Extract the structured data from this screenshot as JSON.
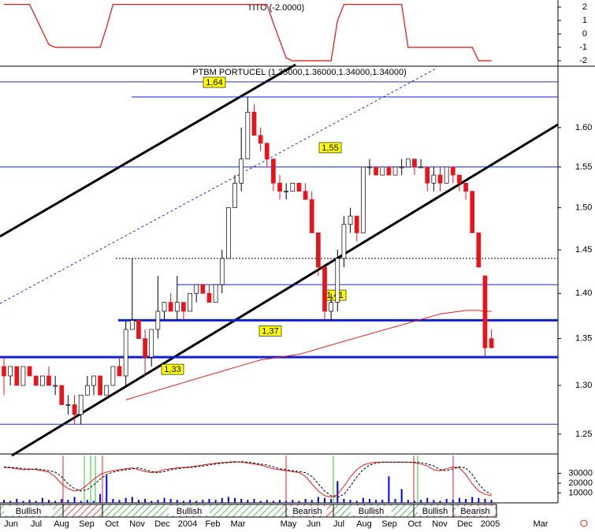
{
  "chart_data": [
    {
      "type": "line",
      "title": "TITO (-2.0000)",
      "color": "#e02020",
      "ylim": [
        -2.35,
        2.53
      ],
      "yticks": [
        2,
        1,
        0,
        -1,
        -2
      ],
      "values": [
        2.2,
        2.2,
        2.2,
        2.2,
        2.2,
        1.2,
        0.2,
        -0.8,
        -1,
        -1,
        -1,
        -1,
        -1,
        -1,
        -1,
        -1,
        0.5,
        2.2,
        2.2,
        2.2,
        2.2,
        2.2,
        2.2,
        2.2,
        2.2,
        2.2,
        2.2,
        2.2,
        2.2,
        2.2,
        2.2,
        2.2,
        2.2,
        2.2,
        2.2,
        2.2,
        2.2,
        2.2,
        2.2,
        2.2,
        2.2,
        2.2,
        0.8,
        -0.5,
        -1.8,
        -2,
        -2,
        -2,
        -2,
        -2,
        -2,
        -2,
        1,
        2.2,
        2.2,
        2.2,
        2.2,
        2.2,
        2.2,
        2.2,
        2.2,
        2.2,
        2.2,
        -1,
        -1,
        -1,
        -1,
        -1,
        -1,
        -1,
        -1,
        -1,
        -1,
        -1,
        -2,
        -2,
        -2
      ]
    },
    {
      "type": "candlestick",
      "title": "PTBM PORTUCEL (1.35000,1.36000,1.34000,1.34000)",
      "categories": [
        "Jun",
        "Jul",
        "Aug",
        "Sep",
        "Oct",
        "Nov",
        "Dec",
        "2004",
        "Feb",
        "Mar",
        null,
        "May",
        "Jun",
        "Jul",
        "Aug",
        "Sep",
        "Oct",
        "Nov",
        "Dec",
        "2005",
        null,
        "Mar"
      ],
      "log_scale": true,
      "ylim": [
        1.231,
        1.68
      ],
      "yticks": [
        1.25,
        {
          "value": 1.3,
          "label": "1.30"
        },
        1.35,
        {
          "value": 1.4,
          "label": "1.40"
        },
        1.45,
        {
          "value": 1.5,
          "label": "1.50"
        },
        1.55,
        {
          "value": 1.6,
          "label": "1.60"
        }
      ],
      "up_color": "#ffffff",
      "down_color": "#e8141c",
      "open": [
        1.32,
        1.31,
        1.32,
        1.3,
        1.32,
        1.31,
        1.3,
        1.31,
        1.3,
        1.3,
        1.28,
        1.28,
        1.27,
        1.29,
        1.3,
        1.31,
        1.29,
        1.3,
        1.32,
        1.31,
        1.36,
        1.37,
        1.35,
        1.33,
        1.36,
        1.38,
        1.39,
        1.38,
        1.39,
        1.38,
        1.4,
        1.41,
        1.4,
        1.39,
        1.41,
        1.44,
        1.5,
        1.53,
        1.56,
        1.62,
        1.59,
        1.58,
        1.56,
        1.53,
        1.52,
        1.52,
        1.53,
        1.52,
        1.51,
        1.47,
        1.43,
        1.38,
        1.39,
        1.44,
        1.48,
        1.49,
        1.47,
        1.55,
        1.55,
        1.54,
        1.55,
        1.54,
        1.55,
        1.55,
        1.56,
        1.55,
        1.55,
        1.53,
        1.54,
        1.53,
        1.55,
        1.54,
        1.53,
        1.52,
        1.47,
        1.42,
        1.35
      ],
      "high": [
        1.33,
        1.32,
        1.32,
        1.32,
        1.32,
        1.31,
        1.31,
        1.32,
        1.31,
        1.3,
        1.29,
        1.29,
        1.29,
        1.31,
        1.31,
        1.31,
        1.3,
        1.32,
        1.33,
        1.37,
        1.44,
        1.37,
        1.36,
        1.36,
        1.42,
        1.39,
        1.4,
        1.42,
        1.39,
        1.4,
        1.41,
        1.41,
        1.41,
        1.41,
        1.45,
        1.5,
        1.54,
        1.6,
        1.64,
        1.63,
        1.6,
        1.58,
        1.56,
        1.54,
        1.53,
        1.53,
        1.53,
        1.53,
        1.52,
        1.47,
        1.43,
        1.4,
        1.45,
        1.49,
        1.5,
        1.49,
        1.55,
        1.56,
        1.55,
        1.55,
        1.55,
        1.55,
        1.56,
        1.56,
        1.56,
        1.56,
        1.55,
        1.55,
        1.55,
        1.55,
        1.55,
        1.54,
        1.53,
        1.52,
        1.47,
        1.42,
        1.36
      ],
      "low": [
        1.29,
        1.3,
        1.3,
        1.3,
        1.31,
        1.3,
        1.3,
        1.3,
        1.29,
        1.28,
        1.27,
        1.26,
        1.26,
        1.29,
        1.29,
        1.29,
        1.29,
        1.3,
        1.31,
        1.3,
        1.36,
        1.35,
        1.31,
        1.32,
        1.35,
        1.37,
        1.38,
        1.37,
        1.37,
        1.38,
        1.39,
        1.4,
        1.39,
        1.39,
        1.4,
        1.44,
        1.5,
        1.52,
        1.56,
        1.59,
        1.57,
        1.55,
        1.52,
        1.51,
        1.51,
        1.52,
        1.52,
        1.51,
        1.47,
        1.42,
        1.37,
        1.37,
        1.38,
        1.43,
        1.47,
        1.46,
        1.47,
        1.54,
        1.54,
        1.54,
        1.54,
        1.54,
        1.54,
        1.55,
        1.54,
        1.55,
        1.52,
        1.52,
        1.52,
        1.53,
        1.53,
        1.52,
        1.51,
        1.47,
        1.43,
        1.33,
        1.34
      ],
      "close": [
        1.31,
        1.32,
        1.3,
        1.32,
        1.31,
        1.3,
        1.31,
        1.3,
        1.3,
        1.28,
        1.28,
        1.27,
        1.29,
        1.3,
        1.31,
        1.29,
        1.3,
        1.32,
        1.31,
        1.36,
        1.37,
        1.35,
        1.33,
        1.36,
        1.38,
        1.39,
        1.38,
        1.39,
        1.38,
        1.4,
        1.41,
        1.4,
        1.39,
        1.41,
        1.44,
        1.5,
        1.53,
        1.56,
        1.62,
        1.59,
        1.58,
        1.56,
        1.53,
        1.52,
        1.52,
        1.53,
        1.52,
        1.51,
        1.47,
        1.43,
        1.38,
        1.39,
        1.44,
        1.48,
        1.49,
        1.47,
        1.55,
        1.55,
        1.54,
        1.55,
        1.54,
        1.55,
        1.55,
        1.56,
        1.55,
        1.55,
        1.53,
        1.54,
        1.53,
        1.55,
        1.54,
        1.53,
        1.52,
        1.47,
        1.43,
        1.34,
        1.34
      ],
      "moving_average": {
        "color": "#e02020",
        "values": [
          null,
          null,
          null,
          null,
          null,
          null,
          null,
          null,
          null,
          null,
          null,
          null,
          null,
          null,
          null,
          null,
          null,
          null,
          null,
          1.285,
          1.287,
          1.289,
          1.291,
          1.293,
          1.295,
          1.297,
          1.299,
          1.301,
          1.303,
          1.305,
          1.307,
          1.309,
          1.311,
          1.313,
          1.315,
          1.317,
          1.319,
          1.321,
          1.323,
          1.325,
          1.327,
          1.328,
          1.329,
          1.33,
          1.331,
          1.332,
          1.333,
          1.335,
          1.337,
          1.339,
          1.341,
          1.343,
          1.345,
          1.347,
          1.349,
          1.351,
          1.353,
          1.355,
          1.357,
          1.359,
          1.361,
          1.363,
          1.365,
          1.367,
          1.369,
          1.371,
          1.373,
          1.375,
          1.377,
          1.378,
          1.379,
          1.38,
          1.381,
          1.381,
          1.381,
          1.38,
          1.38
        ]
      },
      "levels": [
        {
          "value": 1.64,
          "label": "1,64"
        },
        {
          "value": 1.55,
          "label": "1,55"
        },
        {
          "value": 1.41,
          "label": "1,41"
        },
        {
          "value": 1.37,
          "label": "1,37"
        },
        {
          "value": 1.33,
          "label": "1,33"
        }
      ],
      "lines": [
        1.66,
        1.44,
        1.26
      ]
    },
    {
      "type": "indicator",
      "ylim": [
        0,
        48000
      ],
      "yticks": [
        30000,
        20000,
        10000
      ],
      "volume": {
        "color": "#0000ff",
        "values": [
          3000,
          2000,
          4000,
          2000,
          3000,
          2000,
          5000,
          3000,
          2000,
          4000,
          3000,
          6000,
          2000,
          3000,
          2000,
          9000,
          28000,
          4000,
          3000,
          5000,
          6000,
          3000,
          4000,
          2000,
          3000,
          5000,
          4000,
          3000,
          2000,
          3000,
          2000,
          3000,
          4000,
          3000,
          5000,
          6000,
          5000,
          4000,
          3000,
          4000,
          2000,
          3000,
          2000,
          3000,
          2000,
          3000,
          2000,
          4000,
          3000,
          6000,
          5000,
          4000,
          22000,
          4000,
          3000,
          2000,
          5000,
          4000,
          3000,
          3000,
          27000,
          4000,
          14000,
          3000,
          2000,
          3000,
          5000,
          3000,
          2000,
          4000,
          3000,
          5000,
          4000,
          6000,
          5000,
          4000,
          3000
        ]
      },
      "oscillator_lim": [
        0,
        100
      ],
      "oscillator": {
        "color": "#e02020",
        "values": [
          75,
          74,
          72,
          70,
          72,
          70,
          68,
          65,
          55,
          40,
          30,
          25,
          28,
          38,
          50,
          60,
          65,
          68,
          70,
          72,
          74,
          70,
          66,
          64,
          66,
          70,
          72,
          74,
          75,
          76,
          78,
          80,
          82,
          84,
          85,
          86,
          87,
          86,
          84,
          82,
          80,
          76,
          72,
          70,
          68,
          66,
          64,
          56,
          40,
          25,
          15,
          12,
          18,
          35,
          55,
          70,
          80,
          84,
          86,
          86,
          86,
          86,
          86,
          86,
          85,
          82,
          78,
          70,
          68,
          72,
          76,
          74,
          60,
          40,
          25,
          18,
          15
        ]
      },
      "signal": {
        "color": "#000000",
        "values": [
          76,
          75,
          74,
          72,
          70,
          72,
          70,
          68,
          65,
          55,
          40,
          30,
          25,
          28,
          38,
          50,
          60,
          65,
          68,
          70,
          72,
          74,
          70,
          66,
          64,
          66,
          70,
          72,
          74,
          75,
          76,
          78,
          80,
          82,
          84,
          85,
          86,
          87,
          86,
          84,
          82,
          80,
          76,
          72,
          70,
          68,
          66,
          64,
          56,
          40,
          25,
          15,
          12,
          18,
          35,
          55,
          70,
          80,
          84,
          86,
          86,
          86,
          86,
          86,
          86,
          85,
          82,
          78,
          70,
          68,
          72,
          76,
          74,
          60,
          40,
          25,
          18
        ]
      },
      "regimes": [
        "Bullish",
        "Bullish",
        "Bearish",
        "Bullish",
        "Bullish",
        "Bearish"
      ]
    }
  ]
}
